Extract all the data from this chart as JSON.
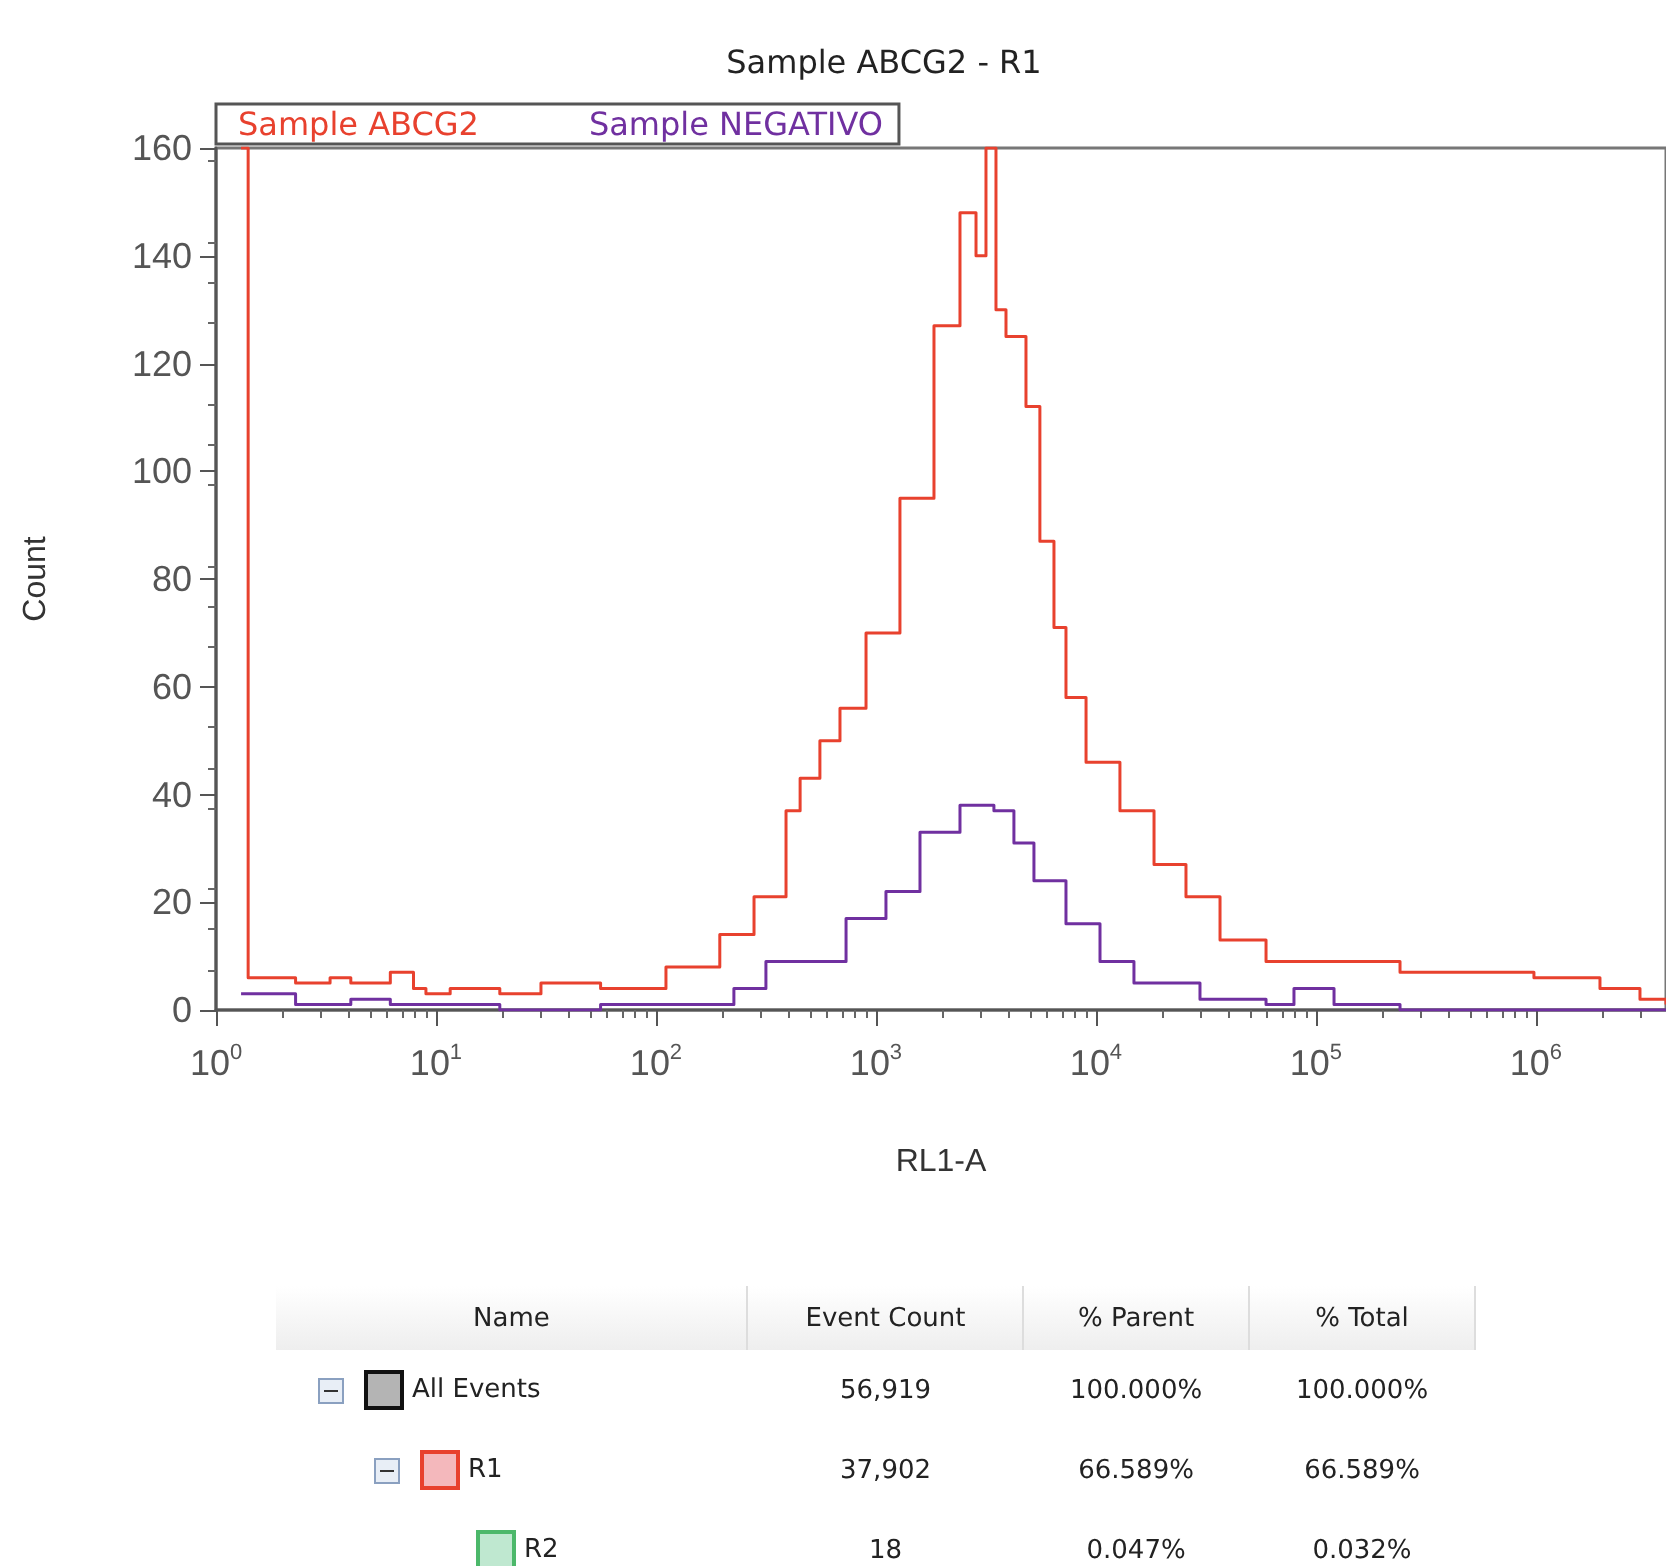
{
  "chart_data": [
    {
      "type": "step",
      "title": "Sample ABCG2 - R1",
      "xlabel": "RL1-A",
      "ylabel": "Count",
      "log": "x",
      "xlim": [
        1,
        3900000
      ],
      "xticks": [
        {
          "value": 1,
          "label": "10$^{0}$"
        },
        {
          "value": 10,
          "label": "10$^{1}$"
        },
        {
          "value": 100,
          "label": "10$^{2}$"
        },
        {
          "value": 1000,
          "label": "10$^{3}$"
        },
        {
          "value": 10000,
          "label": "10$^{4}$"
        },
        {
          "value": 100000,
          "label": "10$^{5}$"
        },
        {
          "value": 1000000,
          "label": "10$^{6}$"
        }
      ],
      "ylim": [
        0,
        160
      ],
      "yticks": [
        0,
        20,
        40,
        60,
        80,
        100,
        120,
        140,
        160
      ],
      "grid": false,
      "legend": "top left",
      "marker": "none",
      "series": [
        {
          "name": "Sample ABCG2",
          "color": "#e8412e",
          "x": [
            1.3,
            1.4,
            2.3,
            3.3,
            4.1,
            6.2,
            7.9,
            9,
            11.6,
            19.5,
            30,
            56,
            111,
            195,
            279,
            390,
            452,
            556,
            686,
            901,
            1285,
            1835,
            2409,
            2849,
            3162,
            3511,
            3899,
            4806,
            5559,
            6442,
            7305,
            9012,
            12850,
            18360,
            25650,
            36630,
            59290,
            120800,
            241000,
            480900,
            979000,
            1954000,
            2970000,
            3900000
          ],
          "values": [
            160,
            6,
            5,
            6,
            5,
            7,
            4,
            3,
            4,
            3,
            5,
            4,
            8,
            14,
            21,
            37,
            43,
            50,
            56,
            70,
            95,
            127,
            148,
            140,
            160,
            130,
            125,
            112,
            87,
            71,
            58,
            46,
            37,
            27,
            21,
            13,
            9,
            9,
            7,
            7,
            6,
            4,
            2,
            1
          ]
        },
        {
          "name": "Sample NEGATIVO",
          "color": "#7030a0",
          "x": [
            1.3,
            2.3,
            4.1,
            6.2,
            9,
            19.5,
            56,
            111,
            226,
            316,
            452,
            731,
            1110,
            1585,
            2409,
            3436,
            4236,
            5224,
            7305,
            10430,
            14880,
            29700,
            59290,
            79430,
            120800,
            241000,
            3900000
          ],
          "values": [
            3,
            1,
            2,
            1,
            1,
            0,
            1,
            1,
            4,
            9,
            9,
            17,
            22,
            33,
            38,
            37,
            31,
            24,
            16,
            9,
            5,
            2,
            1,
            4,
            1,
            0,
            0
          ]
        }
      ]
    },
    {
      "type": "other",
      "categories": [
        "Name",
        "Event Count",
        "% Parent",
        "% Total"
      ],
      "colors": [
        "#b4b4b4",
        "#f4b8bc",
        "#bfe8d0"
      ],
      "cell_labels": [
        [
          "All Events",
          "56,919",
          "100.000%",
          "100.000%"
        ],
        [
          "R1",
          "37,902",
          "66.589%",
          "66.589%"
        ],
        [
          "R2",
          "18",
          "0.047%",
          "0.032%"
        ]
      ]
    }
  ]
}
